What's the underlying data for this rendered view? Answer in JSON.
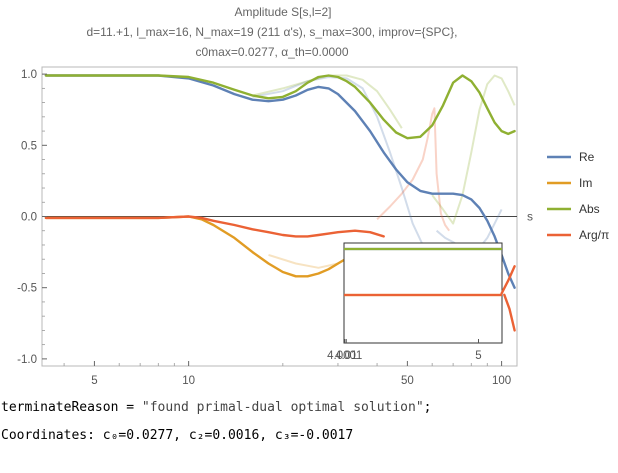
{
  "title": {
    "line1": "Amplitude S[s,l=2]",
    "line2": "d=11.+1, l_max=16, N_max=19 (211 α's), s_max=300, improv={SPC},",
    "line3": "c0max=0.0277, α_th=0.0000"
  },
  "output_lines": {
    "line1_prefix": "terminateReason = ",
    "line1_value": "\"found primal-dual optimal solution\"",
    "line1_suffix": ";",
    "line2": "Coordinates: c₀=0.0277, c₂=0.0016, c₃=-0.0017"
  },
  "chart_data": {
    "type": "line",
    "title": "Amplitude S[s,l=2]",
    "xlabel": "s",
    "ylabel": "",
    "x_scale": "log",
    "xlim": [
      3.4,
      112
    ],
    "ylim": [
      -1.05,
      1.05
    ],
    "x_ticks": [
      5,
      10,
      50,
      100
    ],
    "x_tick_labels": [
      "5",
      "10",
      "50",
      "100"
    ],
    "y_ticks": [
      -1.0,
      -0.5,
      0.0,
      0.5,
      1.0
    ],
    "y_tick_labels": [
      "-1.0",
      "-0.5",
      "0.0",
      "0.5",
      "1.0"
    ],
    "legend_position": "right",
    "series": [
      {
        "name": "Re",
        "color": "#5e81b5",
        "x": [
          3.5,
          6,
          8,
          10,
          12,
          14,
          16,
          18,
          20,
          22,
          24,
          26,
          28,
          30,
          34,
          38,
          42,
          46,
          50,
          55,
          60,
          65,
          70,
          75,
          80,
          85,
          90,
          95,
          100,
          105,
          110
        ],
        "y": [
          0.99,
          0.99,
          0.99,
          0.97,
          0.92,
          0.86,
          0.82,
          0.81,
          0.82,
          0.85,
          0.89,
          0.91,
          0.9,
          0.86,
          0.74,
          0.6,
          0.45,
          0.33,
          0.24,
          0.18,
          0.16,
          0.16,
          0.16,
          0.15,
          0.12,
          0.06,
          -0.03,
          -0.14,
          -0.27,
          -0.4,
          -0.5
        ]
      },
      {
        "name": "Im",
        "color": "#e19c24",
        "x": [
          3.5,
          6,
          8,
          10,
          11,
          12,
          14,
          16,
          18,
          20,
          22,
          24,
          26,
          28,
          30,
          34,
          38
        ],
        "y": [
          -0.01,
          -0.01,
          -0.01,
          0.0,
          -0.02,
          -0.06,
          -0.15,
          -0.25,
          -0.33,
          -0.39,
          -0.42,
          -0.42,
          -0.4,
          -0.37,
          -0.33,
          -0.26,
          -0.2
        ]
      },
      {
        "name": "Abs",
        "color": "#8fb032",
        "x": [
          3.5,
          6,
          8,
          10,
          12,
          14,
          16,
          18,
          20,
          22,
          24,
          26,
          28,
          30,
          32,
          34,
          38,
          42,
          46,
          50,
          55,
          60,
          65,
          70,
          75,
          80,
          85,
          90,
          95,
          100,
          105,
          110
        ],
        "y": [
          0.99,
          0.99,
          0.99,
          0.98,
          0.94,
          0.89,
          0.85,
          0.83,
          0.84,
          0.88,
          0.94,
          0.98,
          0.99,
          0.98,
          0.95,
          0.91,
          0.8,
          0.68,
          0.59,
          0.55,
          0.56,
          0.64,
          0.78,
          0.94,
          0.99,
          0.95,
          0.87,
          0.76,
          0.66,
          0.6,
          0.58,
          0.6
        ]
      },
      {
        "name": "Arg/π",
        "color": "#eb6235",
        "x": [
          3.5,
          6,
          8,
          10,
          11,
          12,
          14,
          16,
          18,
          20,
          22,
          24,
          26,
          28,
          30,
          34,
          38,
          42
        ],
        "y": [
          -0.01,
          -0.01,
          -0.01,
          0.0,
          -0.01,
          -0.03,
          -0.06,
          -0.09,
          -0.11,
          -0.13,
          -0.14,
          -0.14,
          -0.13,
          -0.12,
          -0.11,
          -0.1,
          -0.11,
          -0.14
        ]
      }
    ],
    "faint_series": [
      {
        "name": "",
        "color": "#5e81b5",
        "x": [
          16,
          20,
          24,
          28,
          32,
          36,
          40,
          44,
          48,
          52,
          56,
          60
        ],
        "y": [
          0.84,
          0.88,
          0.95,
          0.98,
          0.97,
          0.9,
          0.7,
          0.45,
          0.2,
          -0.05,
          -0.2,
          -0.25
        ]
      },
      {
        "name": "",
        "color": "#8fb032",
        "x": [
          16,
          20,
          24,
          28,
          32,
          36,
          40,
          44,
          48
        ],
        "y": [
          0.85,
          0.9,
          0.95,
          0.99,
          0.99,
          0.96,
          0.88,
          0.75,
          0.62
        ]
      },
      {
        "name": "",
        "color": "#8fb032",
        "x": [
          60,
          65,
          70,
          75,
          80,
          85,
          90,
          95,
          100,
          105,
          110
        ],
        "y": [
          0.15,
          0.05,
          -0.05,
          0.15,
          0.45,
          0.75,
          0.93,
          0.99,
          0.97,
          0.88,
          0.78
        ]
      },
      {
        "name": "",
        "color": "#e19c24",
        "x": [
          18,
          22,
          26,
          30,
          34,
          38
        ],
        "y": [
          -0.27,
          -0.33,
          -0.36,
          -0.33,
          -0.26,
          -0.2
        ]
      },
      {
        "name": "",
        "color": "#eb6235",
        "x": [
          40,
          44,
          48,
          52,
          56,
          58,
          60,
          61,
          62,
          64,
          66,
          68
        ],
        "y": [
          -0.02,
          0.07,
          0.16,
          0.26,
          0.4,
          0.55,
          0.72,
          0.76,
          0.3,
          0.02,
          -0.06,
          -0.1
        ]
      },
      {
        "name": "",
        "color": "#5e81b5",
        "x": [
          62,
          66,
          70,
          75,
          80,
          85,
          90,
          95,
          100
        ],
        "y": [
          -0.1,
          -0.15,
          -0.18,
          -0.22,
          -0.25,
          -0.22,
          -0.15,
          -0.05,
          0.05
        ]
      }
    ],
    "right_edge_fragments": [
      {
        "name": "",
        "color": "#eb6235",
        "x": [
          100,
          105,
          110
        ],
        "y": [
          -0.54,
          -0.45,
          -0.35
        ]
      },
      {
        "name": "",
        "color": "#eb6235",
        "x": [
          102,
          106,
          110
        ],
        "y": [
          -0.55,
          -0.65,
          -0.8
        ]
      }
    ],
    "inset": {
      "x_scale": "log",
      "xlim": [
        3.995,
        5.2
      ],
      "x_ticks": [
        4.0001,
        4.01,
        5
      ],
      "x_tick_labels": [
        "4.0001",
        "4.01",
        "5"
      ],
      "series": [
        {
          "name": "Re",
          "color": "#5e81b5",
          "y_level": 0.99
        },
        {
          "name": "Abs",
          "color": "#8fb032",
          "y_level": 0.99
        },
        {
          "name": "Im",
          "color": "#e19c24",
          "y_level": -0.01
        },
        {
          "name": "Arg/π",
          "color": "#eb6235",
          "y_level": -0.01
        }
      ]
    }
  }
}
